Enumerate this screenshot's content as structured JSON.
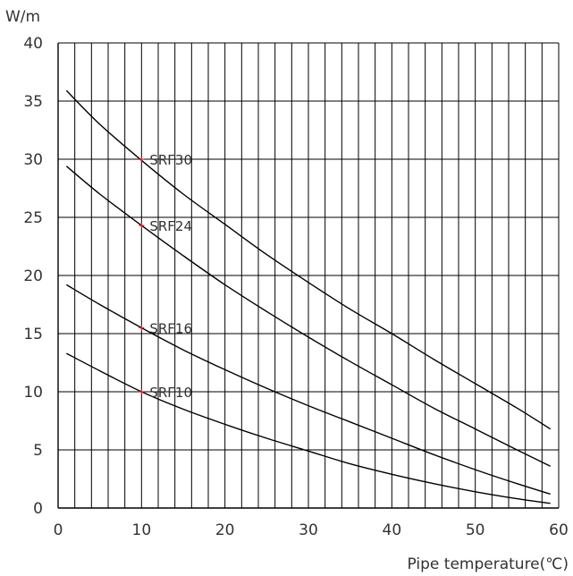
{
  "chart_data": {
    "type": "line",
    "ylabel": "W/m",
    "xlabel": "Pipe temperature(℃)",
    "xlim": [
      0,
      60
    ],
    "ylim": [
      0,
      40
    ],
    "xticks": [
      0,
      10,
      20,
      30,
      40,
      50,
      60
    ],
    "yticks": [
      0,
      5,
      10,
      15,
      20,
      25,
      30,
      35,
      40
    ],
    "x_minor_step": 2,
    "grid": true,
    "series": [
      {
        "name": "SRF30",
        "label_at": [
          10,
          30
        ],
        "x": [
          1,
          5,
          10,
          15,
          20,
          25,
          30,
          35,
          40,
          45,
          50,
          55,
          59
        ],
        "y": [
          35.9,
          33.0,
          29.9,
          27.0,
          24.4,
          21.8,
          19.4,
          17.1,
          15.0,
          12.8,
          10.7,
          8.6,
          6.8
        ]
      },
      {
        "name": "SRF24",
        "label_at": [
          10,
          24.3
        ],
        "x": [
          1,
          5,
          10,
          15,
          20,
          25,
          30,
          35,
          40,
          45,
          50,
          55,
          59
        ],
        "y": [
          29.4,
          27.0,
          24.3,
          21.7,
          19.2,
          16.9,
          14.7,
          12.6,
          10.6,
          8.6,
          6.8,
          5.0,
          3.6
        ]
      },
      {
        "name": "SRF16",
        "label_at": [
          10,
          15.5
        ],
        "x": [
          1,
          5,
          10,
          15,
          20,
          25,
          30,
          35,
          40,
          45,
          50,
          55,
          59
        ],
        "y": [
          19.2,
          17.5,
          15.5,
          13.6,
          11.9,
          10.3,
          8.8,
          7.4,
          6.0,
          4.6,
          3.3,
          2.1,
          1.2
        ]
      },
      {
        "name": "SRF10",
        "label_at": [
          10,
          10
        ],
        "x": [
          1,
          5,
          10,
          15,
          20,
          25,
          30,
          35,
          40,
          45,
          50,
          55,
          59
        ],
        "y": [
          13.3,
          11.8,
          10.0,
          8.5,
          7.2,
          6.0,
          4.9,
          3.8,
          2.9,
          2.1,
          1.4,
          0.8,
          0.4
        ]
      }
    ],
    "colors": {
      "curve": "#000000",
      "grid": "#000000",
      "marker": "#e0202a"
    }
  }
}
